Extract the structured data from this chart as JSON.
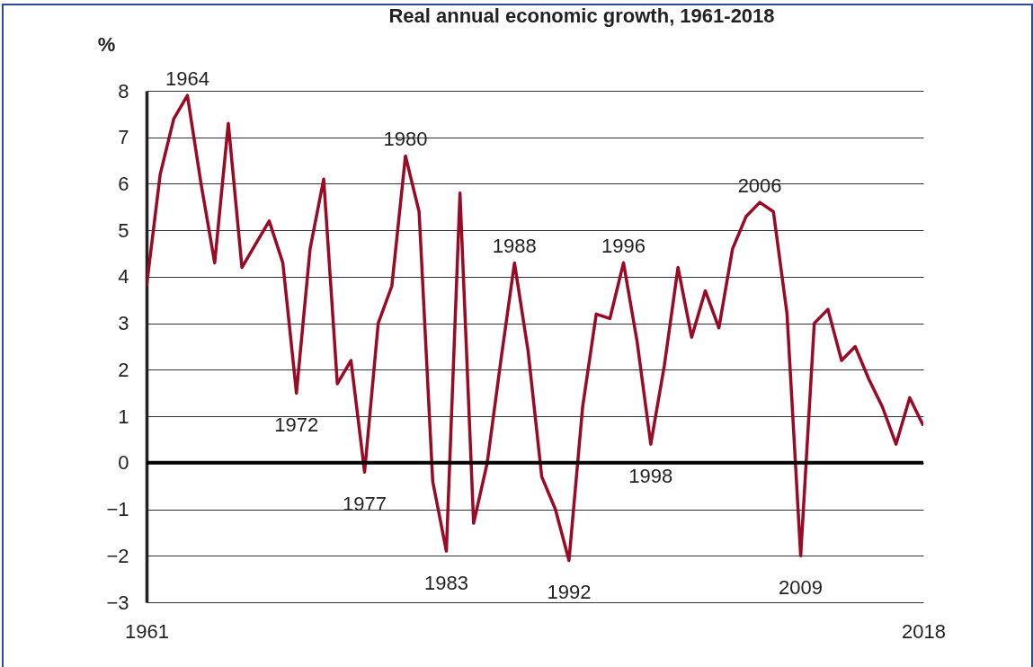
{
  "chart_data": {
    "type": "line",
    "title": "Real annual economic growth, 1961-2018",
    "ylabel": "%",
    "x": [
      1961,
      1962,
      1963,
      1964,
      1965,
      1966,
      1967,
      1968,
      1969,
      1970,
      1971,
      1972,
      1973,
      1974,
      1975,
      1976,
      1977,
      1978,
      1979,
      1980,
      1981,
      1982,
      1983,
      1984,
      1985,
      1986,
      1987,
      1988,
      1989,
      1990,
      1991,
      1992,
      1993,
      1994,
      1995,
      1996,
      1997,
      1998,
      1999,
      2000,
      2001,
      2002,
      2003,
      2004,
      2005,
      2006,
      2007,
      2008,
      2009,
      2010,
      2011,
      2012,
      2013,
      2014,
      2015,
      2016,
      2017,
      2018
    ],
    "series": [
      {
        "color": "#9a0a24",
        "values": [
          3.8,
          6.2,
          7.4,
          7.9,
          6.0,
          4.3,
          7.3,
          4.2,
          4.7,
          5.2,
          4.3,
          1.5,
          4.6,
          6.1,
          1.7,
          2.2,
          -0.2,
          3.0,
          3.8,
          6.6,
          5.4,
          -0.4,
          -1.9,
          5.8,
          -1.3,
          0.0,
          2.2,
          4.3,
          2.4,
          -0.3,
          -1.0,
          -2.1,
          1.2,
          3.2,
          3.1,
          4.3,
          2.6,
          0.4,
          2.1,
          4.2,
          2.7,
          3.7,
          2.9,
          4.6,
          5.3,
          5.6,
          5.4,
          3.2,
          -2.0,
          3.0,
          3.3,
          2.2,
          2.5,
          1.8,
          1.2,
          0.4,
          1.4,
          0.8
        ]
      }
    ],
    "xlim": [
      1961,
      2018
    ],
    "xticks": [
      1961,
      2018
    ],
    "ylim": [
      -3,
      8
    ],
    "yticks": [
      -3,
      -2,
      -1,
      0,
      1,
      2,
      3,
      4,
      5,
      6,
      7,
      8
    ],
    "grid": "y",
    "ref_lines": [
      {
        "axis": "y",
        "value": 0,
        "color": "#000000"
      }
    ],
    "annotations": [
      {
        "text": "1964",
        "x": 1964,
        "y": 7.9
      },
      {
        "text": "1972",
        "x": 1972,
        "y": 1.5
      },
      {
        "text": "1977",
        "x": 1977,
        "y": -0.2
      },
      {
        "text": "1980",
        "x": 1980,
        "y": 6.6
      },
      {
        "text": "1983",
        "x": 1983,
        "y": -1.9
      },
      {
        "text": "1988",
        "x": 1988,
        "y": 4.3
      },
      {
        "text": "1992",
        "x": 1992,
        "y": -2.1
      },
      {
        "text": "1996",
        "x": 1996,
        "y": 4.3
      },
      {
        "text": "1998",
        "x": 1998,
        "y": 0.4
      },
      {
        "text": "2006",
        "x": 2006,
        "y": 5.6
      },
      {
        "text": "2009",
        "x": 2009,
        "y": -2.0
      }
    ]
  }
}
